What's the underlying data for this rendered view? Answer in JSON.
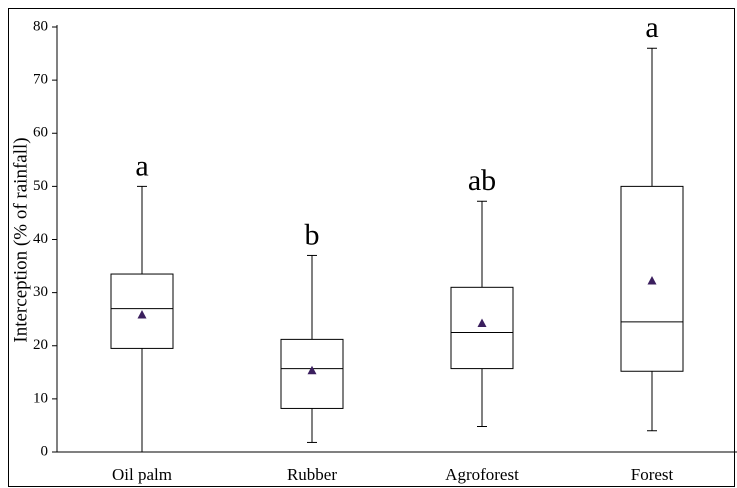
{
  "chart_data": {
    "type": "box",
    "y_label": "Interception (% of rainfall)",
    "categories": [
      "Oil palm",
      "Rubber",
      "Agroforest",
      "Forest"
    ],
    "boxes": [
      {
        "min": 0,
        "q1": 19.5,
        "median": 27,
        "q3": 33.5,
        "max": 50,
        "mean": 25.8
      },
      {
        "min": 1.8,
        "q1": 8.2,
        "median": 15.7,
        "q3": 21.2,
        "max": 37,
        "mean": 15.3
      },
      {
        "min": 4.8,
        "q1": 15.7,
        "median": 22.5,
        "q3": 31,
        "max": 47.2,
        "mean": 24.2
      },
      {
        "min": 4,
        "q1": 15.2,
        "median": 24.5,
        "q3": 50,
        "max": 76,
        "mean": 32.2
      }
    ],
    "annotations": [
      "a",
      "b",
      "ab",
      "a"
    ],
    "mean_color": "#3b1f5e",
    "ylim": [
      0,
      80
    ],
    "yticks": [
      0,
      10,
      20,
      30,
      40,
      50,
      60,
      70,
      80
    ]
  }
}
